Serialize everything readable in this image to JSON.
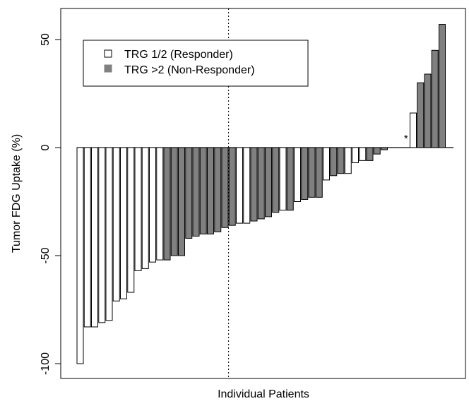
{
  "chart_data": {
    "type": "bar",
    "ylabel": "Tumor FDG Uptake (%)",
    "xlabel": "Individual Patients",
    "ylim": [
      -105,
      65
    ],
    "yticks": [
      -100,
      -50,
      0,
      50
    ],
    "grid": false,
    "legend_position": "top-left",
    "colors": {
      "responder": "#ffffff",
      "non_responder": "#808080",
      "outline": "#000000"
    },
    "legend": [
      {
        "label": "TRG 1/2 (Responder)",
        "group": "responder"
      },
      {
        "label": "TRG >2 (Non-Responder)",
        "group": "non_responder"
      }
    ],
    "annotations": [
      {
        "text": "*",
        "bar_index": 45
      }
    ],
    "reference_line_after_bar": 20,
    "series": [
      {
        "name": "TRG 1/2 (Responder)",
        "values": [
          -100,
          -83,
          -83,
          -81,
          -80,
          -71,
          -70,
          -67,
          -57,
          -56,
          -53,
          -52,
          null,
          null,
          null,
          null,
          null,
          null,
          null,
          null,
          null,
          null,
          -35,
          -35,
          null,
          null,
          null,
          null,
          -29,
          null,
          -25,
          null,
          null,
          null,
          -15,
          null,
          null,
          -12,
          -7,
          -6,
          null,
          null,
          null,
          null,
          null,
          null,
          16,
          null,
          null,
          null,
          null,
          null
        ]
      },
      {
        "name": "TRG >2 (Non-Responder)",
        "values": [
          null,
          null,
          null,
          null,
          null,
          null,
          null,
          null,
          null,
          null,
          null,
          null,
          -52,
          -50,
          -50,
          -42,
          -41,
          -40,
          -40,
          -39,
          -37,
          -36,
          null,
          null,
          -34,
          -33,
          -32,
          -30,
          null,
          -29,
          null,
          -24,
          -23,
          -23,
          null,
          -13,
          -12,
          null,
          null,
          null,
          -6,
          -3,
          -1,
          null,
          null,
          null,
          null,
          30,
          34,
          45,
          57,
          null
        ]
      }
    ]
  }
}
